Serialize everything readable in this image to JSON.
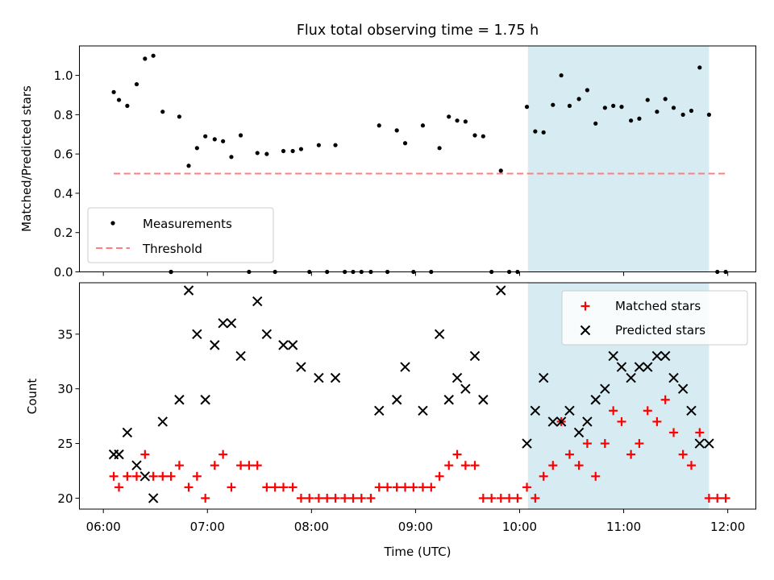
{
  "chart_data": [
    {
      "type": "scatter",
      "title": "Flux total observing time = 1.75 h",
      "xlabel": "",
      "ylabel": "Matched/Predicted stars",
      "xlim": [
        5.77,
        12.27
      ],
      "ylim": [
        0,
        1.15
      ],
      "yticks": [
        0.0,
        0.2,
        0.4,
        0.6,
        0.8,
        1.0
      ],
      "ytick_labels": [
        "0.0",
        "0.2",
        "0.4",
        "0.6",
        "0.8",
        "1.0"
      ],
      "highlight_span": [
        10.08,
        11.82
      ],
      "legend": {
        "placement": "lower-left",
        "measurements_label": "Measurements",
        "threshold_label": "Threshold"
      },
      "threshold": {
        "value": 0.5,
        "x_range": [
          6.1,
          12.0
        ],
        "color": "#ff7f7f"
      },
      "colors": {
        "points": "#000000",
        "span": "#add8e6"
      },
      "x": [
        6.1,
        6.15,
        6.23,
        6.32,
        6.4,
        6.48,
        6.57,
        6.65,
        6.73,
        6.82,
        6.9,
        6.98,
        7.07,
        7.15,
        7.23,
        7.32,
        7.48,
        7.57,
        7.73,
        7.82,
        7.9,
        8.07,
        8.23,
        8.65,
        8.82,
        8.9,
        9.07,
        9.23,
        9.32,
        9.4,
        9.48,
        9.57,
        9.65,
        9.82,
        10.07,
        10.15,
        10.23,
        10.32,
        10.4,
        10.48,
        10.57,
        10.65,
        10.73,
        10.82,
        10.9,
        10.98,
        11.07,
        11.15,
        11.23,
        11.32,
        11.4,
        11.48,
        11.57,
        11.65,
        11.73,
        11.82,
        6.65,
        7.4,
        7.65,
        7.98,
        8.15,
        8.32,
        8.4,
        8.48,
        8.57,
        8.73,
        8.98,
        9.15,
        9.73,
        9.9,
        9.98,
        11.9,
        11.98
      ],
      "y": [
        0.915,
        0.875,
        0.845,
        0.955,
        1.085,
        1.1,
        0.815,
        0.0,
        0.79,
        0.54,
        0.63,
        0.69,
        0.675,
        0.665,
        0.585,
        0.695,
        0.605,
        0.6,
        0.615,
        0.615,
        0.625,
        0.645,
        0.645,
        0.745,
        0.72,
        0.655,
        0.745,
        0.63,
        0.79,
        0.77,
        0.765,
        0.695,
        0.69,
        0.515,
        0.84,
        0.715,
        0.71,
        0.85,
        1.0,
        0.845,
        0.88,
        0.925,
        0.755,
        0.835,
        0.845,
        0.84,
        0.77,
        0.78,
        0.875,
        0.815,
        0.88,
        0.835,
        0.8,
        0.82,
        1.04,
        0.8,
        0.0,
        0.0,
        0.0,
        0.0,
        0.0,
        0.0,
        0.0,
        0.0,
        0.0,
        0.0,
        0.0,
        0.0,
        0.0,
        0.0,
        0.0,
        0.0,
        0.0
      ]
    },
    {
      "type": "scatter",
      "title": "",
      "xlabel": "Time (UTC)",
      "ylabel": "Count",
      "xlim": [
        5.77,
        12.27
      ],
      "ylim": [
        19,
        39.7
      ],
      "yticks": [
        20,
        25,
        30,
        35
      ],
      "ytick_labels": [
        "20",
        "25",
        "30",
        "35"
      ],
      "xticks": [
        6,
        7,
        8,
        9,
        10,
        11,
        12
      ],
      "xtick_labels": [
        "06:00",
        "07:00",
        "08:00",
        "09:00",
        "10:00",
        "11:00",
        "12:00"
      ],
      "highlight_span": [
        10.08,
        11.82
      ],
      "legend": {
        "placement": "upper-right",
        "matched_label": "Matched stars",
        "predicted_label": "Predicted stars"
      },
      "colors": {
        "matched": "#ff0000",
        "predicted": "#000000",
        "span": "#add8e6"
      },
      "series": [
        {
          "name": "Matched stars",
          "marker": "+",
          "x": [
            6.1,
            6.15,
            6.23,
            6.32,
            6.4,
            6.48,
            6.57,
            6.65,
            6.73,
            6.82,
            6.9,
            6.98,
            7.07,
            7.15,
            7.23,
            7.32,
            7.4,
            7.48,
            7.57,
            7.65,
            7.73,
            7.82,
            7.9,
            7.98,
            8.07,
            8.15,
            8.23,
            8.32,
            8.4,
            8.48,
            8.57,
            8.65,
            8.73,
            8.82,
            8.9,
            8.98,
            9.07,
            9.15,
            9.23,
            9.32,
            9.4,
            9.48,
            9.57,
            9.65,
            9.73,
            9.82,
            9.9,
            9.98,
            10.07,
            10.15,
            10.23,
            10.32,
            10.4,
            10.48,
            10.57,
            10.65,
            10.73,
            10.82,
            10.9,
            10.98,
            11.07,
            11.15,
            11.23,
            11.32,
            11.4,
            11.48,
            11.57,
            11.65,
            11.73,
            11.82,
            11.9,
            11.98
          ],
          "values": [
            22,
            21,
            22,
            22,
            24,
            22,
            22,
            22,
            23,
            21,
            22,
            20,
            23,
            24,
            21,
            23,
            23,
            23,
            21,
            21,
            21,
            21,
            20,
            20,
            20,
            20,
            20,
            20,
            20,
            20,
            20,
            21,
            21,
            21,
            21,
            21,
            21,
            21,
            22,
            23,
            24,
            23,
            23,
            20,
            20,
            20,
            20,
            20,
            21,
            20,
            22,
            23,
            27,
            24,
            23,
            25,
            22,
            25,
            28,
            27,
            24,
            25,
            28,
            27,
            29,
            26,
            24,
            23,
            26,
            20,
            20,
            20
          ]
        },
        {
          "name": "Predicted stars",
          "marker": "x",
          "x": [
            6.1,
            6.15,
            6.23,
            6.32,
            6.4,
            6.48,
            6.57,
            6.73,
            6.82,
            6.9,
            6.98,
            7.07,
            7.15,
            7.23,
            7.32,
            7.48,
            7.57,
            7.73,
            7.82,
            7.9,
            8.07,
            8.23,
            8.65,
            8.82,
            8.9,
            9.07,
            9.23,
            9.32,
            9.4,
            9.48,
            9.57,
            9.65,
            9.82,
            10.07,
            10.15,
            10.23,
            10.32,
            10.4,
            10.48,
            10.57,
            10.65,
            10.73,
            10.82,
            10.9,
            10.98,
            11.07,
            11.15,
            11.23,
            11.32,
            11.4,
            11.48,
            11.57,
            11.65,
            11.73,
            11.82
          ],
          "values": [
            24,
            24,
            26,
            23,
            22,
            20,
            27,
            29,
            39,
            35,
            29,
            34,
            36,
            36,
            33,
            38,
            35,
            34,
            34,
            32,
            31,
            31,
            28,
            29,
            32,
            28,
            35,
            29,
            31,
            30,
            33,
            29,
            39,
            25,
            28,
            31,
            27,
            27,
            28,
            26,
            27,
            29,
            30,
            33,
            32,
            31,
            32,
            32,
            33,
            33,
            31,
            30,
            28,
            25,
            25
          ]
        }
      ]
    }
  ]
}
